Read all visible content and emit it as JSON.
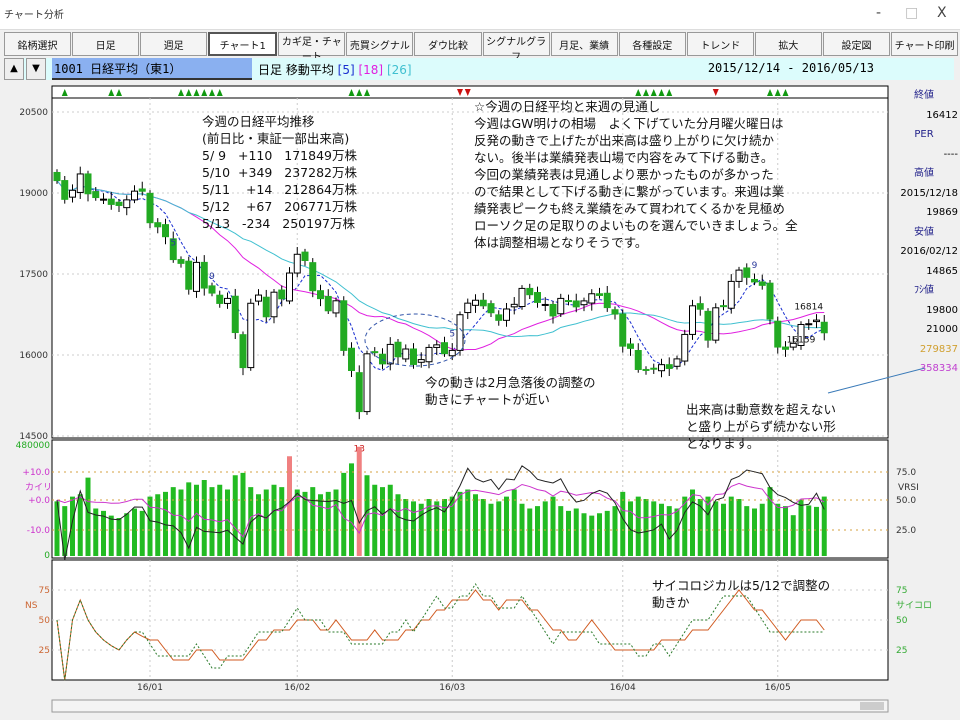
{
  "window": {
    "title": "チャート分析",
    "minimize": "-",
    "maximize": "□",
    "close": "X"
  },
  "toolbar": [
    "銘柄選択",
    "日足",
    "週足",
    "チャート1",
    "カギ足・チャート",
    "売買シグナル",
    "ダウ比較",
    "シグナルグラフ",
    "月足、業績",
    "各種設定",
    "トレンド",
    "拡大",
    "設定図",
    "チャート印刷"
  ],
  "toolbar_active": 3,
  "info": {
    "up": "▲",
    "down": "▼",
    "code": "1001 日経平均（東1）",
    "ma_label": "日足 移動平均",
    "ma5": "[5]",
    "ma18": "[18]",
    "ma26": "[26]",
    "range": "2015/12/14 - 2016/05/13"
  },
  "colors": {
    "ma5": "#1a2fd0",
    "ma18": "#e020e0",
    "ma26": "#40c0d0",
    "up": "#ffffff",
    "down": "#22aa22",
    "volume": "#22bb22",
    "volume_high": "#f08080"
  },
  "right_panel": [
    {
      "h": "終値"
    },
    {
      "v": "16412"
    },
    {
      "h": "PER"
    },
    {
      "v": "----"
    },
    {
      "h": "高値"
    },
    {
      "v": "2015/12/18"
    },
    {
      "v": "19869"
    },
    {
      "h": "安値"
    },
    {
      "v": "2016/02/12"
    },
    {
      "v": "14865"
    },
    {
      "h": "ﾌｼ値"
    },
    {
      "v": "19800"
    },
    {
      "v": "21000"
    },
    {
      "v": "279837",
      "c": "#d0a030"
    },
    {
      "v": "358334",
      "c": "#c040d0"
    }
  ],
  "notes": {
    "weekly": "今週の日経平均推移\n(前日比・東証一部出来高)\n5/ 9   +110   171849万株\n5/10  +349   237282万株\n5/11    +14   212864万株\n5/12    +67   206771万株\n5/13   -234   250197万株",
    "main": "☆今週の日経平均と来週の見通し\n今週はGW明けの相場　よく下げていた分月曜火曜日は\n反発の動きで上げたが出来高は盛り上がりに欠け続か\nない。後半は業績発表山場で内容をみて下げる動き。\n今回の業績発表は見通しより悪かったものが多かった\nので結果として下げる動きに繋がっています。来週は業\n績発表ピークも終え業績をみて買われてくるかを見極め\nローソク足の足取りのよいものを選んでいきましょう。全\n体は調整相場となりそうです。",
    "similar": "今の動きは2月急落後の調整の\n動きにチャートが近い",
    "volume": "出来高は動意数を超えない\nと盛り上がらず続かない形\nとなります。",
    "psych": "サイコロジカルは5/12で調整の\n動きか"
  },
  "chart_data": {
    "type": "candlestick",
    "price_axis": {
      "ticks": [
        20500,
        19000,
        17500,
        16000,
        14500
      ],
      "range": [
        14500,
        20500
      ]
    },
    "date_ticks": [
      {
        "label": "16/01",
        "index": 12
      },
      {
        "label": "16/02",
        "index": 31
      },
      {
        "label": "16/03",
        "index": 51
      },
      {
        "label": "16/04",
        "index": 73
      },
      {
        "label": "16/05",
        "index": 93
      }
    ],
    "moving_averages": [
      5,
      18,
      26
    ],
    "closes": [
      19230,
      18883,
      19050,
      19353,
      18986,
      18916,
      18886,
      18789,
      18769,
      18873,
      19034,
      19033,
      18450,
      18374,
      18191,
      17767,
      17697,
      17218,
      17715,
      17240,
      17147,
      16955,
      17048,
      16416,
      15767,
      16958,
      17110,
      16708,
      17163,
      17041,
      17518,
      17865,
      17750,
      17191,
      17044,
      16819,
      17004,
      16085,
      15713,
      14952,
      16022,
      16054,
      15836,
      16196,
      15967,
      16111,
      15825,
      15915,
      16140,
      16188,
      16026,
      16085,
      16746,
      16960,
      17014,
      16911,
      16783,
      16642,
      16852,
      16938,
      17233,
      17117,
      16974,
      16936,
      16724,
      17048,
      17000,
      16892,
      17002,
      17134,
      17103,
      16878,
      16758,
      16164,
      16123,
      15732,
      15715,
      15749,
      15821,
      15751,
      15928,
      16381,
      16911,
      16848,
      16275,
      16874,
      16906,
      17363,
      17572,
      17439,
      17353,
      17290,
      16666,
      16147,
      16106,
      16216,
      16565,
      16579,
      16646,
      16412
    ],
    "volume_axis": {
      "max": 480000,
      "min": 0,
      "labels": [
        "480000",
        "0"
      ]
    },
    "volume": [
      230000,
      210000,
      250000,
      260000,
      330000,
      200000,
      190000,
      170000,
      160000,
      180000,
      200000,
      190000,
      250000,
      260000,
      270000,
      290000,
      280000,
      310000,
      300000,
      320000,
      290000,
      300000,
      280000,
      340000,
      350000,
      290000,
      260000,
      280000,
      300000,
      290000,
      420000,
      280000,
      270000,
      290000,
      260000,
      270000,
      280000,
      350000,
      390000,
      460000,
      340000,
      300000,
      290000,
      300000,
      260000,
      240000,
      230000,
      220000,
      240000,
      230000,
      240000,
      250000,
      270000,
      280000,
      260000,
      240000,
      220000,
      230000,
      250000,
      280000,
      220000,
      200000,
      210000,
      230000,
      250000,
      210000,
      190000,
      200000,
      180000,
      170000,
      180000,
      190000,
      210000,
      270000,
      230000,
      250000,
      240000,
      230000,
      220000,
      210000,
      200000,
      250000,
      280000,
      240000,
      250000,
      230000,
      220000,
      250000,
      240000,
      210000,
      200000,
      220000,
      290000,
      220000,
      210000,
      171849,
      237282,
      212864,
      206771,
      250197
    ],
    "kairi_axis": {
      "label": "カイリ",
      "ticks": [
        "+10.0",
        "+0.0",
        "-10.0"
      ]
    },
    "vrsi_axis": {
      "label": "VRSI",
      "ticks": [
        "75.0",
        "50.0",
        "25.0"
      ]
    },
    "ns_axis": {
      "label": "NS",
      "ticks": [
        "75",
        "50",
        "25"
      ]
    },
    "psych_axis": {
      "label": "サイコロ",
      "ticks": [
        "75",
        "50",
        "25"
      ]
    },
    "buy_signals": [
      1,
      7,
      8,
      16,
      17,
      18,
      19,
      20,
      21,
      38,
      39,
      40,
      75,
      76,
      77,
      78,
      79,
      92,
      93,
      94
    ],
    "sell_signals": [
      52,
      53,
      85
    ],
    "labels": [
      {
        "text": "16814",
        "index": 97
      },
      {
        "text": "16159",
        "index": 96
      },
      {
        "text": "13",
        "index": 39
      },
      {
        "text": "9",
        "index": 20
      },
      {
        "text": "5",
        "index": 15
      },
      {
        "text": "5",
        "index": 51
      },
      {
        "text": "9",
        "index": 90
      }
    ]
  }
}
